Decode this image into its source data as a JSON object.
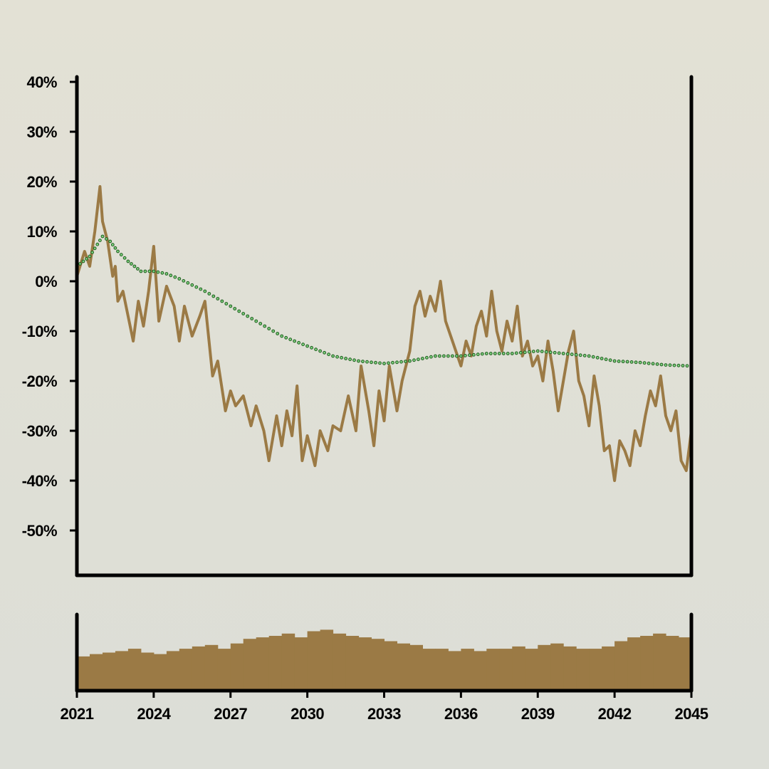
{
  "chart_data": [
    {
      "type": "line",
      "title": "",
      "xlabel": "",
      "ylabel": "",
      "xlim": [
        2021,
        2045
      ],
      "ylim": [
        -59,
        41
      ],
      "y_ticks": [
        "40%",
        "30%",
        "20%",
        "10%",
        "0%",
        "-10%",
        "-20%",
        "-30%",
        "-40%",
        "-50%"
      ],
      "y_tick_values": [
        40,
        30,
        20,
        10,
        0,
        -10,
        -20,
        -30,
        -40,
        -50
      ],
      "grid": false,
      "series": [
        {
          "color": "#9b7a45",
          "style": "solid",
          "x": [
            2021.0,
            2021.3,
            2021.5,
            2021.7,
            2021.9,
            2022.0,
            2022.2,
            2022.4,
            2022.5,
            2022.6,
            2022.8,
            2023.0,
            2023.2,
            2023.4,
            2023.6,
            2023.8,
            2024.0,
            2024.2,
            2024.5,
            2024.8,
            2025.0,
            2025.2,
            2025.5,
            2025.8,
            2026.0,
            2026.3,
            2026.5,
            2026.8,
            2027.0,
            2027.2,
            2027.5,
            2027.8,
            2028.0,
            2028.3,
            2028.5,
            2028.8,
            2029.0,
            2029.2,
            2029.4,
            2029.6,
            2029.8,
            2030.0,
            2030.3,
            2030.5,
            2030.8,
            2031.0,
            2031.3,
            2031.6,
            2031.9,
            2032.1,
            2032.4,
            2032.6,
            2032.8,
            2033.0,
            2033.2,
            2033.5,
            2033.7,
            2034.0,
            2034.2,
            2034.4,
            2034.6,
            2034.8,
            2035.0,
            2035.2,
            2035.4,
            2035.6,
            2035.8,
            2036.0,
            2036.2,
            2036.4,
            2036.6,
            2036.8,
            2037.0,
            2037.2,
            2037.4,
            2037.6,
            2037.8,
            2038.0,
            2038.2,
            2038.4,
            2038.6,
            2038.8,
            2039.0,
            2039.2,
            2039.4,
            2039.6,
            2039.8,
            2040.0,
            2040.2,
            2040.4,
            2040.6,
            2040.8,
            2041.0,
            2041.2,
            2041.4,
            2041.6,
            2041.8,
            2042.0,
            2042.2,
            2042.4,
            2042.6,
            2042.8,
            2043.0,
            2043.2,
            2043.4,
            2043.6,
            2043.8,
            2044.0,
            2044.2,
            2044.4,
            2044.6,
            2044.8,
            2045.0
          ],
          "y": [
            1,
            6,
            3,
            10,
            19,
            12,
            8,
            1,
            3,
            -4,
            -2,
            -7,
            -12,
            -4,
            -9,
            -2,
            7,
            -8,
            -1,
            -5,
            -12,
            -5,
            -11,
            -7,
            -4,
            -19,
            -16,
            -26,
            -22,
            -25,
            -23,
            -29,
            -25,
            -30,
            -36,
            -27,
            -33,
            -26,
            -31,
            -21,
            -36,
            -31,
            -37,
            -30,
            -34,
            -29,
            -30,
            -23,
            -30,
            -17,
            -26,
            -33,
            -22,
            -28,
            -17,
            -26,
            -20,
            -14,
            -5,
            -2,
            -7,
            -3,
            -6,
            0,
            -8,
            -11,
            -14,
            -17,
            -12,
            -15,
            -9,
            -6,
            -11,
            -2,
            -10,
            -14,
            -8,
            -12,
            -5,
            -15,
            -12,
            -17,
            -15,
            -20,
            -12,
            -18,
            -26,
            -20,
            -14,
            -10,
            -20,
            -23,
            -29,
            -19,
            -25,
            -34,
            -33,
            -40,
            -32,
            -34,
            -37,
            -30,
            -33,
            -27,
            -22,
            -25,
            -19,
            -27,
            -30,
            -26,
            -36,
            -38,
            -30
          ]
        },
        {
          "color": "#1f5e1f",
          "style": "dotted",
          "x": [
            2021.0,
            2021.5,
            2022.0,
            2022.3,
            2022.6,
            2023.0,
            2023.5,
            2024.0,
            2024.5,
            2025.0,
            2026.0,
            2027.0,
            2028.0,
            2029.0,
            2030.0,
            2031.0,
            2032.0,
            2033.0,
            2034.0,
            2034.5,
            2035.0,
            2036.0,
            2037.0,
            2038.0,
            2039.0,
            2040.0,
            2041.0,
            2042.0,
            2043.0,
            2044.0,
            2045.0
          ],
          "y": [
            3,
            5,
            9,
            8,
            6,
            4,
            2,
            2,
            1.5,
            0.5,
            -2,
            -5,
            -8,
            -11,
            -13,
            -15,
            -16,
            -16.5,
            -16,
            -15.5,
            -15,
            -15,
            -14.5,
            -14.5,
            -14,
            -14.5,
            -15,
            -16,
            -16.3,
            -16.8,
            -17
          ]
        }
      ]
    },
    {
      "type": "bar",
      "title": "",
      "xlabel": "",
      "ylabel": "",
      "xlim": [
        2021,
        2045
      ],
      "x_ticks": [
        "2021",
        "2024",
        "2027",
        "2030",
        "2033",
        "2036",
        "2039",
        "2042",
        "2045"
      ],
      "x_tick_values": [
        2021,
        2024,
        2027,
        2030,
        2033,
        2036,
        2039,
        2042,
        2045
      ],
      "ylim": [
        0,
        100
      ],
      "color": "#9b7a45",
      "x": [
        2021.0,
        2021.5,
        2022.0,
        2022.5,
        2023.0,
        2023.5,
        2024.0,
        2024.5,
        2025.0,
        2025.5,
        2026.0,
        2026.5,
        2027.0,
        2027.5,
        2028.0,
        2028.5,
        2029.0,
        2029.5,
        2030.0,
        2030.5,
        2031.0,
        2031.5,
        2032.0,
        2032.5,
        2033.0,
        2033.5,
        2034.0,
        2034.5,
        2035.0,
        2035.5,
        2036.0,
        2036.5,
        2037.0,
        2037.5,
        2038.0,
        2038.5,
        2039.0,
        2039.5,
        2040.0,
        2040.5,
        2041.0,
        2041.5,
        2042.0,
        2042.5,
        2043.0,
        2043.5,
        2044.0,
        2044.5
      ],
      "values": [
        45,
        48,
        50,
        52,
        55,
        50,
        48,
        52,
        55,
        58,
        60,
        55,
        62,
        68,
        70,
        72,
        75,
        70,
        78,
        80,
        75,
        72,
        70,
        68,
        65,
        62,
        60,
        55,
        55,
        52,
        55,
        52,
        55,
        55,
        58,
        55,
        60,
        62,
        58,
        55,
        55,
        58,
        65,
        70,
        72,
        75,
        72,
        70
      ]
    }
  ]
}
